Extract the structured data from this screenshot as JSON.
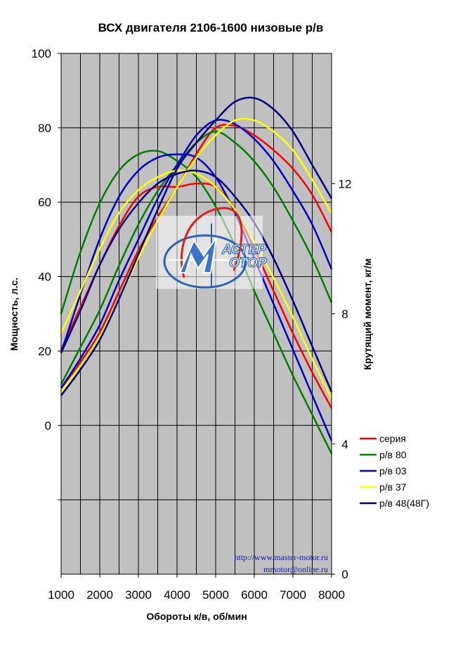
{
  "chart_data": {
    "type": "line",
    "title": "ВСХ двигателя 2106-1600 низовые р/в",
    "xlabel": "Обороты к/в, об/мин",
    "ylabel_left": "Мощность, л.с.",
    "ylabel_right": "Крутящий момент, кг/м",
    "xlim": [
      1000,
      8000
    ],
    "ylim_left": [
      -40,
      100
    ],
    "ylim_right": [
      0,
      16
    ],
    "x_ticks": [
      "1000",
      "2000",
      "3000",
      "4000",
      "5000",
      "6000",
      "7000",
      "8000"
    ],
    "y_left_ticks": [
      {
        "value": 0,
        "label": "0"
      },
      {
        "value": 20,
        "label": "20"
      },
      {
        "value": 40,
        "label": "40"
      },
      {
        "value": 60,
        "label": "60"
      },
      {
        "value": 80,
        "label": "80"
      },
      {
        "value": 100,
        "label": "100"
      }
    ],
    "y_right_ticks": [
      {
        "value": 0,
        "label": "0"
      },
      {
        "value": 4,
        "label": "4"
      },
      {
        "value": 8,
        "label": "8"
      },
      {
        "value": 12,
        "label": "12"
      }
    ],
    "grid": true,
    "legend_position": "right",
    "background_color": "#c0c0c0",
    "series": [
      {
        "name": "серия",
        "color": "#ff0000",
        "power": {
          "x": [
            1000,
            1500,
            2000,
            2500,
            3000,
            3500,
            4000,
            4500,
            5000,
            5500,
            6000,
            6500,
            7000,
            7500,
            8000
          ],
          "y": [
            10,
            17,
            25,
            36,
            47,
            56,
            64,
            73,
            80,
            80.5,
            78,
            74,
            69,
            62,
            52
          ]
        },
        "torque": {
          "x": [
            1000,
            1500,
            2000,
            2500,
            3000,
            3500,
            4000,
            4500,
            5000,
            5500,
            6000,
            6500,
            7000,
            7500,
            8000
          ],
          "y": [
            6.9,
            8.2,
            9.5,
            10.7,
            11.6,
            11.9,
            11.9,
            12.0,
            11.9,
            11.2,
            10.0,
            8.7,
            7.4,
            6.2,
            5.1
          ]
        }
      },
      {
        "name": "р/в 80",
        "color": "#008000",
        "power": {
          "x": [
            1000,
            1500,
            2000,
            2500,
            3000,
            3500,
            4000,
            4500,
            5000,
            5500,
            6000,
            6500,
            7000,
            7500,
            8000
          ],
          "y": [
            11,
            21,
            31,
            43,
            54,
            63,
            70,
            76,
            79,
            76,
            71,
            64,
            55,
            45,
            33
          ]
        },
        "torque": {
          "x": [
            1000,
            1500,
            2000,
            2500,
            3000,
            3500,
            4000,
            4500,
            5000,
            5500,
            6000,
            6500,
            7000,
            7500,
            8000
          ],
          "y": [
            8.0,
            9.9,
            11.4,
            12.4,
            12.9,
            13.0,
            12.7,
            12.2,
            11.3,
            10.1,
            8.7,
            7.4,
            6.1,
            4.9,
            3.7
          ]
        }
      },
      {
        "name": "р/в 03",
        "color": "#0000cc",
        "power": {
          "x": [
            1000,
            1500,
            2000,
            2500,
            3000,
            3500,
            4000,
            4500,
            5000,
            5500,
            6000,
            6500,
            7000,
            7500,
            8000
          ],
          "y": [
            10,
            18,
            27,
            39,
            50,
            61,
            70,
            78,
            82,
            81,
            77,
            71,
            63,
            54,
            42
          ]
        },
        "torque": {
          "x": [
            1000,
            1500,
            2000,
            2500,
            3000,
            3500,
            4000,
            4500,
            5000,
            5500,
            6000,
            6500,
            7000,
            7500,
            8000
          ],
          "y": [
            6.8,
            8.6,
            10.3,
            11.6,
            12.4,
            12.8,
            12.9,
            12.8,
            12.2,
            11.1,
            9.7,
            8.3,
            6.9,
            5.5,
            4.1
          ]
        }
      },
      {
        "name": "р/в 37",
        "color": "#ffff00",
        "power": {
          "x": [
            1000,
            1500,
            2000,
            2500,
            3000,
            3500,
            4000,
            4500,
            5000,
            5500,
            6000,
            6500,
            7000,
            7500,
            8000
          ],
          "y": [
            9,
            16,
            24,
            34,
            45,
            55,
            64,
            72,
            78,
            82,
            82,
            79,
            74,
            66,
            57
          ]
        },
        "torque": {
          "x": [
            1000,
            1500,
            2000,
            2500,
            3000,
            3500,
            4000,
            4500,
            5000,
            5500,
            6000,
            6500,
            7000,
            7500,
            8000
          ],
          "y": [
            7.4,
            8.7,
            10.0,
            11.1,
            11.8,
            12.2,
            12.4,
            12.3,
            11.9,
            11.2,
            10.2,
            9.1,
            7.9,
            6.6,
            5.4
          ]
        }
      },
      {
        "name": "р/в 48(48Г)",
        "color": "#000080",
        "power": {
          "x": [
            1000,
            1500,
            2000,
            2500,
            3000,
            3500,
            4000,
            4500,
            5000,
            5500,
            6000,
            6500,
            7000,
            7500,
            8000
          ],
          "y": [
            8,
            15,
            23,
            34,
            46,
            58,
            69,
            76,
            82,
            87,
            88,
            85,
            79,
            70,
            61
          ]
        },
        "torque": {
          "x": [
            1000,
            1500,
            2000,
            2500,
            3000,
            3500,
            4000,
            4500,
            5000,
            5500,
            6000,
            6500,
            7000,
            7500,
            8000
          ],
          "y": [
            6.8,
            8.1,
            9.5,
            10.6,
            11.4,
            12.0,
            12.3,
            12.4,
            12.2,
            11.6,
            10.8,
            9.7,
            8.4,
            7.0,
            5.6
          ]
        }
      }
    ],
    "watermark": {
      "logo_line1": "АСТЕР",
      "logo_line2": "ОТОР",
      "url": "http://www.master-motor.ru",
      "email": "mmotor@online.ru"
    }
  }
}
